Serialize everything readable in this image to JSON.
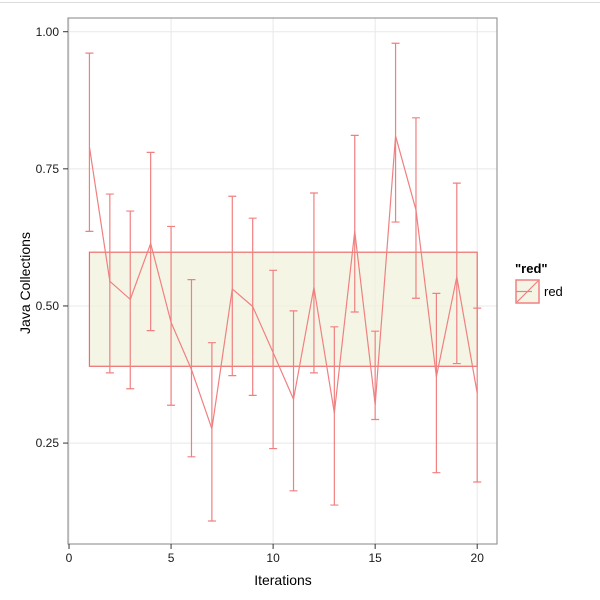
{
  "chart_data": {
    "type": "line",
    "title": "",
    "xlabel": "Iterations",
    "ylabel": "Java Collections",
    "x": [
      1,
      2,
      3,
      4,
      5,
      6,
      7,
      8,
      9,
      10,
      11,
      12,
      13,
      14,
      15,
      16,
      17,
      18,
      19,
      20
    ],
    "series": [
      {
        "name": "red",
        "values": [
          0.79,
          0.545,
          0.512,
          0.614,
          0.47,
          0.384,
          0.276,
          0.531,
          0.499,
          0.415,
          0.33,
          0.534,
          0.305,
          0.636,
          0.32,
          0.81,
          0.675,
          0.371,
          0.553,
          0.341
        ],
        "ymin": [
          0.636,
          0.378,
          0.349,
          0.455,
          0.319,
          0.225,
          0.108,
          0.373,
          0.337,
          0.24,
          0.163,
          0.378,
          0.137,
          0.489,
          0.293,
          0.653,
          0.514,
          0.196,
          0.395,
          0.179
        ],
        "ymax": [
          0.961,
          0.704,
          0.673,
          0.78,
          0.645,
          0.548,
          0.433,
          0.7,
          0.66,
          0.565,
          0.491,
          0.706,
          0.462,
          0.811,
          0.454,
          0.979,
          0.843,
          0.523,
          0.724,
          0.496
        ]
      }
    ],
    "band": {
      "x_start": 1,
      "x_end": 20,
      "y_bottom": 0.39,
      "y_top": 0.598
    },
    "x_ticks": [
      0,
      5,
      10,
      15,
      20
    ],
    "x_tick_labels": [
      "0",
      "5",
      "10",
      "15",
      "20"
    ],
    "y_ticks": [
      0.25,
      0.5,
      0.75,
      1.0
    ],
    "y_tick_labels": [
      "0.25",
      "0.50",
      "0.75",
      "1.00"
    ],
    "xlim": [
      -0.05,
      20.97
    ],
    "ylim": [
      0.066,
      1.025
    ],
    "grid": "major",
    "legend": {
      "title": "\"red\"",
      "entries": [
        {
          "label": "red"
        }
      ],
      "position": "right"
    }
  },
  "colors": {
    "accent": "#F08080",
    "band_border": "#ED6D6D",
    "band_fill": "rgba(242,242,220,0.75)",
    "grid": "#E8E8E8",
    "panel_border": "#858585",
    "tick": "#333333",
    "text": "#1A1A1A"
  }
}
